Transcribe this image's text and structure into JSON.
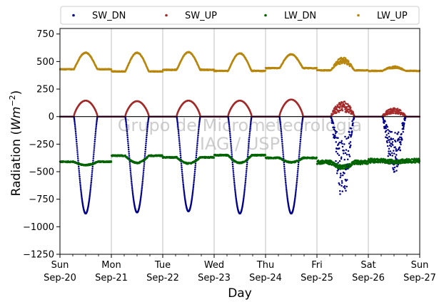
{
  "chart_data": {
    "type": "scatter",
    "xlabel": "Day",
    "ylabel_main": "Radiation (",
    "ylabel_unit": "Wm",
    "ylabel_exp": "−2",
    "ylabel_close": ")",
    "ylim": [
      -1250,
      800
    ],
    "yticks": [
      -1250,
      -1000,
      -750,
      -500,
      -250,
      0,
      250,
      500,
      750
    ],
    "ytick_labels": [
      "−1250",
      "−1000",
      "−750",
      "−500",
      "−250",
      "0",
      "250",
      "500",
      "750"
    ],
    "xlim": [
      0,
      7
    ],
    "xticks": [
      {
        "day": 0,
        "label1": "Sun",
        "label2": "Sep-20"
      },
      {
        "day": 1,
        "label1": "Mon",
        "label2": "Sep-21"
      },
      {
        "day": 2,
        "label1": "Tue",
        "label2": "Sep-22"
      },
      {
        "day": 3,
        "label1": "Wed",
        "label2": "Sep-23"
      },
      {
        "day": 4,
        "label1": "Thu",
        "label2": "Sep-24"
      },
      {
        "day": 5,
        "label1": "Fri",
        "label2": "Sep-25"
      },
      {
        "day": 6,
        "label1": "Sat",
        "label2": "Sep-26"
      },
      {
        "day": 7,
        "label1": "Sun",
        "label2": "Sep-27"
      }
    ],
    "grid": "vertical",
    "legend": "top, above plot, 4 columns",
    "zero_line": 0,
    "watermark": [
      "Grupo de Micrometeorologia",
      "IAG / USP"
    ],
    "series": [
      {
        "name": "SW_DN",
        "color": "#00008b",
        "daily_peak": [
          -880,
          -870,
          -860,
          -880,
          -880,
          -780,
          -560
        ],
        "cloudy_days": [
          5,
          6
        ]
      },
      {
        "name": "SW_UP",
        "color": "#a52a2a",
        "daily_peak": [
          145,
          140,
          145,
          145,
          155,
          140,
          80
        ]
      },
      {
        "name": "LW_DN",
        "color": "#006400",
        "night_level": [
          -410,
          -355,
          -370,
          -350,
          -375,
          -415,
          -400
        ],
        "day_dip": [
          -440,
          -420,
          -425,
          -420,
          -415,
          -460,
          -410
        ]
      },
      {
        "name": "LW_UP",
        "color": "#b8860b",
        "night_level": [
          430,
          410,
          425,
          415,
          440,
          420,
          415
        ],
        "daily_peak": [
          580,
          580,
          585,
          575,
          565,
          540,
          460
        ]
      }
    ]
  }
}
